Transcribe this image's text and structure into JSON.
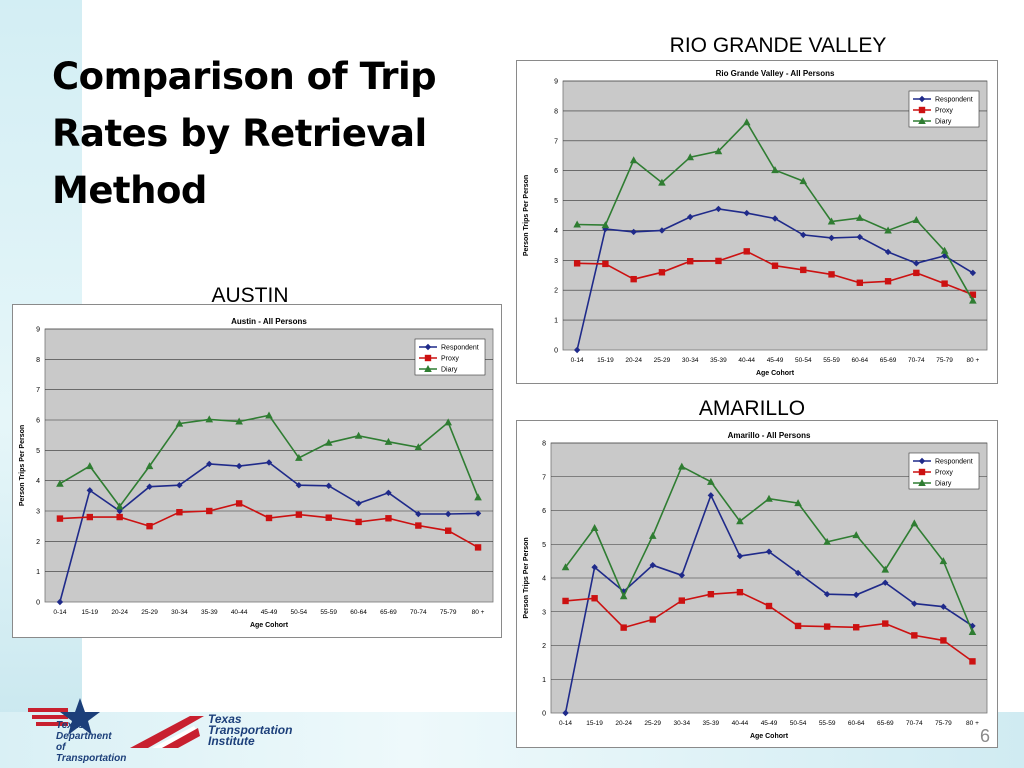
{
  "slide": {
    "title_lines": [
      "Comparison of Trip",
      "Rates by Retrieval",
      "Method"
    ],
    "page_number": "6"
  },
  "regions": {
    "rio": "RIO GRANDE VALLEY",
    "austin": "AUSTIN",
    "amarillo": "AMARILLO"
  },
  "colors": {
    "respondent": "#1f2a8a",
    "proxy": "#cc1111",
    "diary": "#2f7d32",
    "plot_bg": "#c9c9c9",
    "left_band": "#d3eef4",
    "bottom_band": "#d9f0f5"
  },
  "logos": {
    "txdot": [
      "Texas",
      "Department",
      "of Transportation"
    ],
    "tti": [
      "Texas",
      "Transportation",
      "Institute"
    ]
  },
  "chart_data": [
    {
      "id": "rio",
      "type": "line",
      "title": "Rio Grande Valley - All Persons",
      "xlabel": "Age Cohort",
      "ylabel": "Person Trips Per Person",
      "ylim": [
        0,
        9
      ],
      "grid": true,
      "legend": "top-right",
      "categories": [
        "0-14",
        "15-19",
        "20-24",
        "25-29",
        "30-34",
        "35-39",
        "40-44",
        "45-49",
        "50-54",
        "55-59",
        "60-64",
        "65-69",
        "70-74",
        "75-79",
        "80 +"
      ],
      "series": [
        {
          "name": "Respondent",
          "marker": "diamond",
          "values": [
            0,
            4.05,
            3.95,
            4.0,
            4.45,
            4.72,
            4.58,
            4.4,
            3.85,
            3.75,
            3.78,
            3.28,
            2.9,
            3.15,
            2.58
          ]
        },
        {
          "name": "Proxy",
          "marker": "square",
          "values": [
            2.9,
            2.88,
            2.37,
            2.6,
            2.97,
            2.98,
            3.3,
            2.82,
            2.68,
            2.53,
            2.25,
            2.3,
            2.58,
            2.22,
            1.85
          ]
        },
        {
          "name": "Diary",
          "marker": "triangle",
          "values": [
            4.2,
            4.18,
            6.35,
            5.6,
            6.45,
            6.65,
            7.62,
            6.02,
            5.65,
            4.3,
            4.42,
            4.0,
            4.35,
            3.32,
            1.65
          ]
        }
      ]
    },
    {
      "id": "austin",
      "type": "line",
      "title": "Austin - All Persons",
      "xlabel": "Age Cohort",
      "ylabel": "Person Trips Per Person",
      "ylim": [
        0,
        9
      ],
      "grid": true,
      "legend": "top-right",
      "categories": [
        "0-14",
        "15-19",
        "20-24",
        "25-29",
        "30-34",
        "35-39",
        "40-44",
        "45-49",
        "50-54",
        "55-59",
        "60-64",
        "65-69",
        "70-74",
        "75-79",
        "80 +"
      ],
      "series": [
        {
          "name": "Respondent",
          "marker": "diamond",
          "values": [
            0,
            3.68,
            3.0,
            3.8,
            3.85,
            4.55,
            4.48,
            4.6,
            3.85,
            3.83,
            3.25,
            3.6,
            2.9,
            2.9,
            2.92
          ]
        },
        {
          "name": "Proxy",
          "marker": "square",
          "values": [
            2.75,
            2.8,
            2.8,
            2.5,
            2.96,
            3.0,
            3.25,
            2.77,
            2.88,
            2.78,
            2.64,
            2.76,
            2.52,
            2.35,
            1.8
          ]
        },
        {
          "name": "Diary",
          "marker": "triangle",
          "values": [
            3.9,
            4.48,
            3.15,
            4.48,
            5.88,
            6.02,
            5.95,
            6.15,
            4.75,
            5.25,
            5.48,
            5.28,
            5.1,
            5.92,
            3.45
          ]
        }
      ]
    },
    {
      "id": "amarillo",
      "type": "line",
      "title": "Amarillo - All Persons",
      "xlabel": "Age Cohort",
      "ylabel": "Person Trips Per Person",
      "ylim": [
        0,
        8
      ],
      "grid": true,
      "legend": "top-right",
      "categories": [
        "0-14",
        "15-19",
        "20-24",
        "25-29",
        "30-34",
        "35-39",
        "40-44",
        "45-49",
        "50-54",
        "55-59",
        "60-64",
        "65-69",
        "70-74",
        "75-79",
        "80 +"
      ],
      "series": [
        {
          "name": "Respondent",
          "marker": "diamond",
          "values": [
            0,
            4.32,
            3.6,
            4.38,
            4.08,
            6.45,
            4.65,
            4.78,
            4.15,
            3.52,
            3.5,
            3.86,
            3.24,
            3.15,
            2.58
          ]
        },
        {
          "name": "Proxy",
          "marker": "square",
          "values": [
            3.32,
            3.4,
            2.53,
            2.77,
            3.33,
            3.52,
            3.58,
            3.17,
            2.58,
            2.56,
            2.54,
            2.65,
            2.3,
            2.15,
            1.53
          ]
        },
        {
          "name": "Diary",
          "marker": "triangle",
          "values": [
            4.32,
            5.48,
            3.46,
            5.25,
            7.3,
            6.85,
            5.68,
            6.35,
            6.22,
            5.07,
            5.27,
            4.25,
            5.62,
            4.5,
            2.4
          ]
        }
      ]
    }
  ]
}
